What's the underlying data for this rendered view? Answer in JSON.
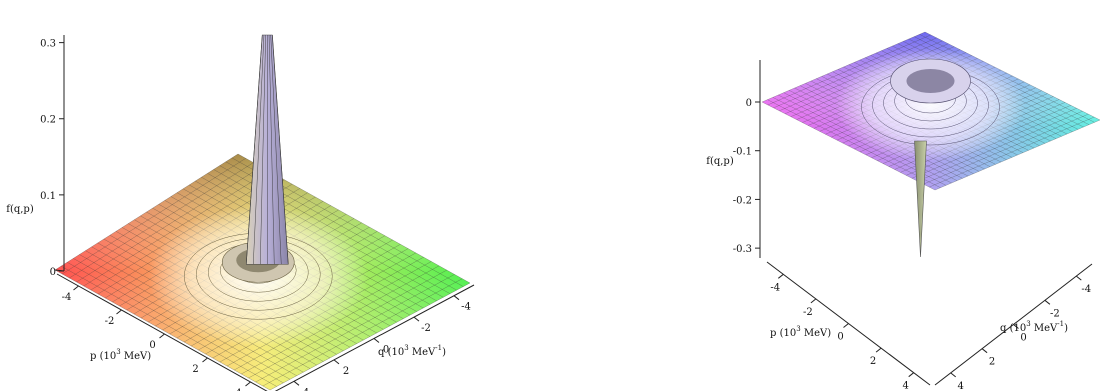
{
  "chart_data": [
    {
      "type": "surface3d",
      "zlabel": "f(q,p)",
      "xlabel_text": "q (10",
      "xlabel_exp": "3",
      "xlabel_unit": " MeV",
      "xlabel_unit_exp": "-1",
      "xlabel_close": ")",
      "ylabel_text": "p (10",
      "ylabel_exp": "3",
      "ylabel_unit": " MeV)",
      "zticks": [
        "0",
        "0.1",
        "0.2",
        "0.3"
      ],
      "zlim": [
        0,
        0.31
      ],
      "q_ticks": [
        "-4",
        "-2",
        "0",
        "2",
        "4"
      ],
      "p_ticks": [
        "-4",
        "-2",
        "0",
        "2",
        "4"
      ],
      "qlim": [
        -5,
        5
      ],
      "plim": [
        -5,
        5
      ],
      "peak_value": 0.31,
      "colors": {
        "corner_a": "#ff5050",
        "corner_b": "#f3f36a",
        "corner_c": "#50f050",
        "corner_d": "#b58d6b"
      }
    },
    {
      "type": "surface3d",
      "zlabel": "f(q,p)",
      "xlabel_text": "q (10",
      "xlabel_exp": "3",
      "xlabel_unit": " MeV",
      "xlabel_unit_exp": "-1",
      "xlabel_close": ")",
      "ylabel_text": "p (10",
      "ylabel_exp": "3",
      "ylabel_unit": " MeV)",
      "zticks": [
        "0",
        "-0.1",
        "-0.2",
        "-0.3"
      ],
      "zlim": [
        -0.31,
        0
      ],
      "q_ticks": [
        "-4",
        "-2",
        "0",
        "2",
        "4"
      ],
      "p_ticks": [
        "-4",
        "-2",
        "0",
        "2",
        "4"
      ],
      "qlim": [
        -5,
        5
      ],
      "plim": [
        -5,
        5
      ],
      "peak_value": -0.31,
      "colors": {
        "corner_a": "#f060f0",
        "corner_b": "#6060f0",
        "corner_c": "#60f0e0",
        "corner_d": "#d0d0f0"
      }
    }
  ]
}
